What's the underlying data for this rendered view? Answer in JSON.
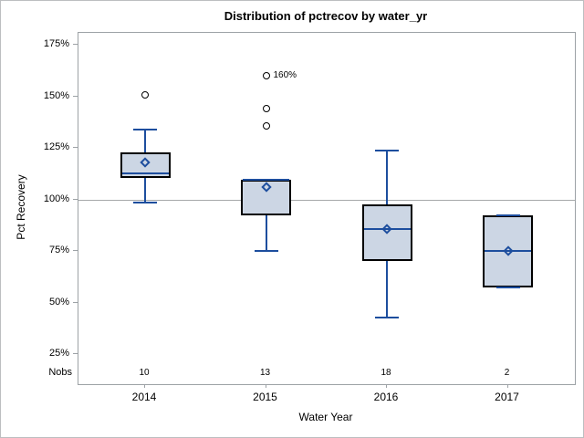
{
  "chart_data": {
    "type": "box",
    "title": "Distribution of pctrecov by water_yr",
    "xlabel": "Water Year",
    "ylabel": "Pct Recovery",
    "nobs_label": "Nobs",
    "categories": [
      "2014",
      "2015",
      "2016",
      "2017"
    ],
    "nobs": [
      "10",
      "13",
      "18",
      "2"
    ],
    "y_ticks": [
      {
        "value": 175,
        "label": "175%"
      },
      {
        "value": 150,
        "label": "150%"
      },
      {
        "value": 125,
        "label": "125%"
      },
      {
        "value": 100,
        "label": "100%"
      },
      {
        "value": 75,
        "label": "75%"
      },
      {
        "value": 50,
        "label": "50%"
      },
      {
        "value": 25,
        "label": "25%"
      }
    ],
    "ylim": [
      10.4,
      180.8
    ],
    "reference_line": 100,
    "grid": "off",
    "legend": "none",
    "series": [
      {
        "category": "2014",
        "n": 10,
        "whisker_low": 98.5,
        "q1": 110.5,
        "median": 112.5,
        "q3": 123,
        "whisker_high": 134,
        "mean": 118,
        "outliers": [
          150.5
        ],
        "outlier_labels": [
          ""
        ]
      },
      {
        "category": "2015",
        "n": 13,
        "whisker_low": 75,
        "q1": 92.5,
        "median": 109.5,
        "q3": 109.5,
        "whisker_high": 109.5,
        "mean": 106,
        "outliers": [
          135.5,
          144,
          160
        ],
        "outlier_labels": [
          "",
          "",
          "160%"
        ]
      },
      {
        "category": "2016",
        "n": 18,
        "whisker_low": 42.5,
        "q1": 70,
        "median": 85.5,
        "q3": 97.5,
        "whisker_high": 123.5,
        "mean": 85.5,
        "outliers": [],
        "outlier_labels": []
      },
      {
        "category": "2017",
        "n": 2,
        "whisker_low": 57.5,
        "q1": 57.5,
        "median": 75,
        "q3": 92.5,
        "whisker_high": 92.5,
        "mean": 75,
        "outliers": [],
        "outlier_labels": []
      }
    ],
    "colors": {
      "box_fill": "#ccd6e4",
      "box_border": "#000000",
      "whisker": "#1d4e9e",
      "median": "#1d4e9e",
      "mean_marker": "#1d4e9e",
      "outlier": "#000000",
      "frame": "#9da2a6",
      "reference_line": "#a6a8aa"
    }
  }
}
